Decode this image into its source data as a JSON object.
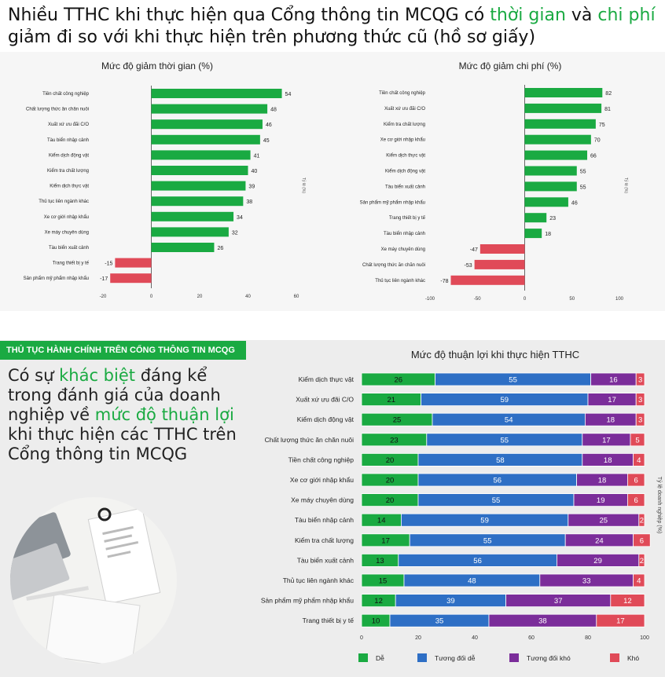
{
  "headline": {
    "part1": "Nhiều TTHC khi thực hiện qua Cổng thông tin MCQG có ",
    "hl1": "thời gian",
    "part2": " và ",
    "hl2": "chi phí",
    "part3": " giảm đi so với khi thực hiện trên phương thức cũ (hồ sơ giấy)"
  },
  "section_banner": "THỦ TỤC HÀNH CHÍNH TRÊN CỔNG THÔNG TIN MCQG",
  "callout": {
    "p1": "Có sự ",
    "hl1": "khác biệt",
    "p2": " đáng kể trong đánh giá của doanh nghiệp về ",
    "hl2": "mức độ thuận lợi",
    "p3": " khi thực hiện các TTHC trên Cổng thông tin MCQG"
  },
  "colors": {
    "positive": "#1aaa42",
    "negative": "#e04a58",
    "de": "#1aaa42",
    "tuong_doi_de": "#2e6fc5",
    "tuong_doi_kho": "#7b2d9a",
    "kho": "#e04a58"
  },
  "chart_data": [
    {
      "type": "bar",
      "orientation": "horizontal",
      "title": "Mức độ giảm thời gian (%)",
      "side_label": "Tỷ lệ (%)",
      "categories": [
        "Tiền chất công nghiệp",
        "Chất lượng thức ăn chăn nuôi",
        "Xuất xứ ưu đãi C/O",
        "Tàu biển nhập cảnh",
        "Kiểm dịch động vật",
        "Kiểm tra chất lượng",
        "Kiểm dịch thực vật",
        "Thủ tục liên ngành khác",
        "Xe cơ giới nhập khẩu",
        "Xe máy chuyên dùng",
        "Tàu biển xuất cảnh",
        "Trang thiết bị y tế",
        "Sản phẩm mỹ phẩm nhập khẩu"
      ],
      "values": [
        54,
        48,
        46,
        45,
        41,
        40,
        39,
        38,
        34,
        32,
        26,
        -15,
        -17
      ],
      "xlim": [
        -20,
        60
      ],
      "ticks": [
        -20,
        0,
        20,
        40,
        60
      ]
    },
    {
      "type": "bar",
      "orientation": "horizontal",
      "title": "Mức độ giảm chi phí (%)",
      "side_label": "Tỷ lệ (%)",
      "categories": [
        "Tiền chất công nghiệp",
        "Xuất xứ ưu đãi C/O",
        "Kiểm tra chất lượng",
        "Xe cơ giới nhập khẩu",
        "Kiểm dịch thực vật",
        "Kiểm dịch động vật",
        "Tàu biển xuất cảnh",
        "Sản phẩm mỹ phẩm nhập khẩu",
        "Trang thiết bị y tế",
        "Tàu biển nhập cảnh",
        "Xe máy chuyên dùng",
        "Chất lượng thức ăn chăn nuôi",
        "Thủ tục liên ngành khác"
      ],
      "values": [
        82,
        81,
        75,
        70,
        66,
        55,
        55,
        46,
        23,
        18,
        -47,
        -53,
        -78
      ],
      "xlim": [
        -100,
        100
      ],
      "ticks": [
        -100,
        -50,
        0,
        50,
        100
      ]
    },
    {
      "type": "bar",
      "orientation": "horizontal",
      "stacked": true,
      "title": "Mức độ thuận lợi khi thực hiện TTHC",
      "side_label": "Tỷ lệ doanh nghiệp (%)",
      "categories": [
        "Kiểm dịch thực vật",
        "Xuất xứ ưu đãi C/O",
        "Kiểm dịch động vật",
        "Chất lượng thức ăn chăn nuôi",
        "Tiền chất công nghiệp",
        "Xe cơ giới nhập khẩu",
        "Xe máy chuyên dùng",
        "Tàu biển nhập cảnh",
        "Kiểm tra chất lượng",
        "Tàu biển xuất cảnh",
        "Thủ tục liên ngành khác",
        "Sản phẩm mỹ phẩm nhập khẩu",
        "Trang thiết bị y tế"
      ],
      "series": [
        {
          "name": "Dễ",
          "values": [
            26,
            21,
            25,
            23,
            20,
            20,
            20,
            14,
            17,
            13,
            15,
            12,
            10
          ]
        },
        {
          "name": "Tương đối dễ",
          "values": [
            55,
            59,
            54,
            55,
            58,
            56,
            55,
            59,
            55,
            56,
            48,
            39,
            35
          ]
        },
        {
          "name": "Tương đối khó",
          "values": [
            16,
            17,
            18,
            17,
            18,
            18,
            19,
            25,
            24,
            29,
            33,
            37,
            38
          ]
        },
        {
          "name": "Khó",
          "values": [
            3,
            3,
            3,
            5,
            4,
            6,
            6,
            2,
            6,
            2,
            4,
            12,
            17
          ]
        }
      ],
      "xlim": [
        0,
        100
      ],
      "ticks": [
        0,
        20,
        40,
        60,
        80,
        100
      ],
      "legend": "bottom"
    }
  ]
}
